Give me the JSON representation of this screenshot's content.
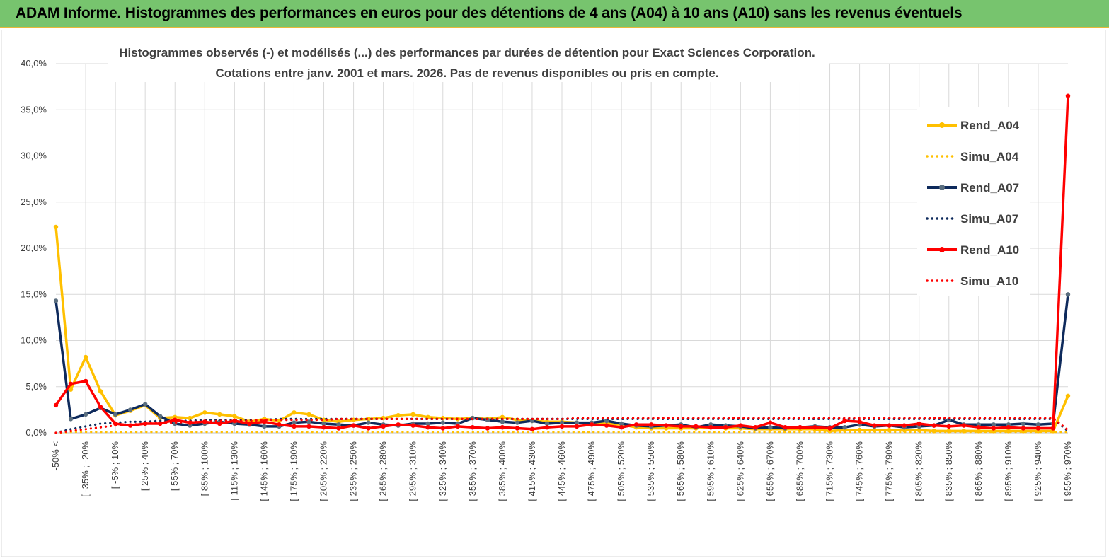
{
  "banner_title": "ADAM Informe. Histogrammes des performances en euros pour des détentions de 4 ans (A04) à 10 ans (A10) sans les revenus éventuels",
  "chart_data": {
    "type": "line",
    "title_line1": "Histogrammes observés (-) et modélisés (...) des performances par durées de détention pour Exact Sciences Corporation.",
    "title_line2": "Cotations entre janv. 2001 et mars. 2026.  Pas de  revenus disponibles ou pris en compte.",
    "ylim": [
      0,
      40
    ],
    "y_ticks": [
      "0,0%",
      "5,0%",
      "10,0%",
      "15,0%",
      "20,0%",
      "25,0%",
      "30,0%",
      "35,0%",
      "40,0%"
    ],
    "x_tick_labels": [
      "-50% <",
      "[ -35% ; -20%",
      "[ -5% ; 10%",
      "[ 25% ; 40%",
      "[ 55% ; 70%",
      "[ 85% ; 100%",
      "[ 115% ; 130%",
      "[ 145% ; 160%",
      "[ 175% ; 190%",
      "[ 205% ; 220%",
      "[ 235% ; 250%",
      "[ 265% ; 280%",
      "[ 295% ; 310%",
      "[ 325% ; 340%",
      "[ 355% ; 370%",
      "[ 385% ; 400%",
      "[ 415% ; 430%",
      "[ 445% ; 460%",
      "[ 475% ; 490%",
      "[ 505% ; 520%",
      "[ 535% ; 550%",
      "[ 565% ; 580%",
      "[ 595% ; 610%",
      "[ 625% ; 640%",
      "[ 655% ; 670%",
      "[ 685% ; 700%",
      "[ 715% ; 730%",
      "[ 745% ; 760%",
      "[ 775% ; 790%",
      "[ 805% ; 820%",
      "[ 835% ; 850%",
      "[ 865% ; 880%",
      "[ 895% ; 910%",
      "[ 925% ; 940%",
      "[ 955% ; 970%"
    ],
    "x_count": 69,
    "legend_position": "right",
    "series": [
      {
        "name": "Rend_A04",
        "style": "solid",
        "color": "#ffc000",
        "values": [
          22.3,
          4.7,
          8.2,
          4.5,
          1.9,
          2.4,
          3.0,
          1.6,
          1.7,
          1.6,
          2.2,
          2.0,
          1.8,
          1.2,
          1.5,
          1.3,
          2.2,
          2.0,
          1.4,
          1.2,
          1.4,
          1.5,
          1.6,
          1.9,
          2.0,
          1.7,
          1.6,
          1.5,
          1.6,
          1.5,
          1.7,
          1.4,
          1.3,
          1.2,
          1.2,
          1.1,
          1.0,
          1.0,
          0.9,
          0.6,
          0.5,
          0.5,
          0.5,
          0.5,
          0.6,
          0.5,
          0.5,
          0.4,
          0.4,
          0.4,
          0.4,
          0.4,
          0.2,
          0.3,
          0.3,
          0.3,
          0.3,
          0.3,
          0.3,
          0.2,
          0.2,
          0.2,
          0.2,
          0.2,
          0.2,
          0.2,
          0.2,
          0.2,
          4.0
        ]
      },
      {
        "name": "Simu_A04",
        "style": "dotted",
        "color": "#ffc000",
        "values": [
          0.0,
          0.1,
          0.1,
          0.1,
          0.1,
          0.1,
          0.1,
          0.1,
          0.1,
          0.1,
          0.1,
          0.1,
          0.1,
          0.1,
          0.1,
          0.1,
          0.1,
          0.1,
          0.1,
          0.1,
          0.1,
          0.1,
          0.1,
          0.1,
          0.1,
          0.1,
          0.1,
          0.1,
          0.1,
          0.1,
          0.1,
          0.1,
          0.1,
          0.1,
          0.1,
          0.1,
          0.1,
          0.1,
          0.1,
          0.1,
          0.1,
          0.1,
          0.1,
          0.1,
          0.1,
          0.1,
          0.1,
          0.1,
          0.1,
          0.1,
          0.1,
          0.1,
          0.1,
          0.1,
          0.1,
          0.1,
          0.1,
          0.1,
          0.1,
          0.1,
          0.1,
          0.1,
          0.1,
          0.1,
          0.1,
          0.1,
          0.1,
          0.1,
          0.1
        ]
      },
      {
        "name": "Rend_A07",
        "style": "solid",
        "color": "#0e2a5c",
        "values": [
          14.3,
          1.5,
          2.0,
          2.7,
          2.0,
          2.5,
          3.1,
          1.8,
          1.0,
          0.8,
          1.0,
          1.2,
          1.0,
          0.9,
          0.7,
          0.7,
          1.1,
          1.2,
          1.0,
          0.9,
          0.8,
          1.1,
          0.9,
          0.8,
          1.0,
          1.0,
          1.1,
          1.0,
          1.6,
          1.4,
          1.2,
          1.1,
          1.3,
          1.0,
          1.1,
          1.1,
          1.1,
          1.3,
          1.0,
          0.8,
          0.7,
          0.8,
          0.9,
          0.6,
          0.9,
          0.8,
          0.7,
          0.5,
          0.6,
          0.5,
          0.6,
          0.7,
          0.6,
          0.6,
          0.9,
          0.7,
          0.8,
          0.6,
          0.7,
          0.8,
          1.4,
          0.9,
          0.9,
          0.9,
          0.9,
          1.0,
          0.9,
          1.0,
          15.0
        ]
      },
      {
        "name": "Simu_A07",
        "style": "dotted",
        "color": "#0e2a5c",
        "values": [
          0.0,
          0.4,
          0.7,
          1.0,
          1.1,
          1.2,
          1.2,
          1.3,
          1.3,
          1.3,
          1.4,
          1.4,
          1.4,
          1.4,
          1.4,
          1.5,
          1.5,
          1.5,
          1.5,
          1.5,
          1.5,
          1.5,
          1.5,
          1.5,
          1.5,
          1.5,
          1.5,
          1.5,
          1.5,
          1.5,
          1.5,
          1.5,
          1.5,
          1.5,
          1.5,
          1.5,
          1.5,
          1.5,
          1.5,
          1.5,
          1.5,
          1.5,
          1.5,
          1.5,
          1.5,
          1.5,
          1.5,
          1.5,
          1.5,
          1.5,
          1.5,
          1.5,
          1.5,
          1.5,
          1.5,
          1.5,
          1.5,
          1.5,
          1.5,
          1.5,
          1.5,
          1.5,
          1.5,
          1.5,
          1.5,
          1.5,
          1.5,
          1.5,
          0.2
        ]
      },
      {
        "name": "Rend_A10",
        "style": "solid",
        "color": "#ff0000",
        "values": [
          3.0,
          5.3,
          5.6,
          2.8,
          1.0,
          0.8,
          1.0,
          1.0,
          1.4,
          1.1,
          1.2,
          1.0,
          1.3,
          1.0,
          1.2,
          0.9,
          0.7,
          0.7,
          0.6,
          0.5,
          0.8,
          0.5,
          0.7,
          0.9,
          0.8,
          0.6,
          0.5,
          0.7,
          0.6,
          0.5,
          0.6,
          0.5,
          0.4,
          0.6,
          0.7,
          0.7,
          0.9,
          0.8,
          0.6,
          0.9,
          0.9,
          0.8,
          0.7,
          0.7,
          0.6,
          0.6,
          0.8,
          0.6,
          1.1,
          0.6,
          0.6,
          0.6,
          0.5,
          1.3,
          1.2,
          0.8,
          0.8,
          0.8,
          1.0,
          0.8,
          0.7,
          0.8,
          0.6,
          0.5,
          0.6,
          0.5,
          0.5,
          0.5,
          36.5
        ]
      },
      {
        "name": "Simu_A10",
        "style": "dotted",
        "color": "#ff0000",
        "values": [
          0.0,
          0.2,
          0.4,
          0.6,
          0.8,
          0.9,
          1.0,
          1.1,
          1.1,
          1.2,
          1.2,
          1.3,
          1.3,
          1.3,
          1.4,
          1.4,
          1.4,
          1.4,
          1.4,
          1.5,
          1.5,
          1.5,
          1.5,
          1.5,
          1.5,
          1.5,
          1.5,
          1.5,
          1.5,
          1.5,
          1.5,
          1.5,
          1.5,
          1.5,
          1.5,
          1.6,
          1.6,
          1.6,
          1.6,
          1.6,
          1.6,
          1.6,
          1.6,
          1.6,
          1.6,
          1.6,
          1.6,
          1.6,
          1.6,
          1.6,
          1.6,
          1.6,
          1.6,
          1.6,
          1.6,
          1.6,
          1.6,
          1.6,
          1.6,
          1.6,
          1.6,
          1.6,
          1.6,
          1.6,
          1.6,
          1.6,
          1.6,
          1.6,
          0.3
        ]
      }
    ]
  }
}
